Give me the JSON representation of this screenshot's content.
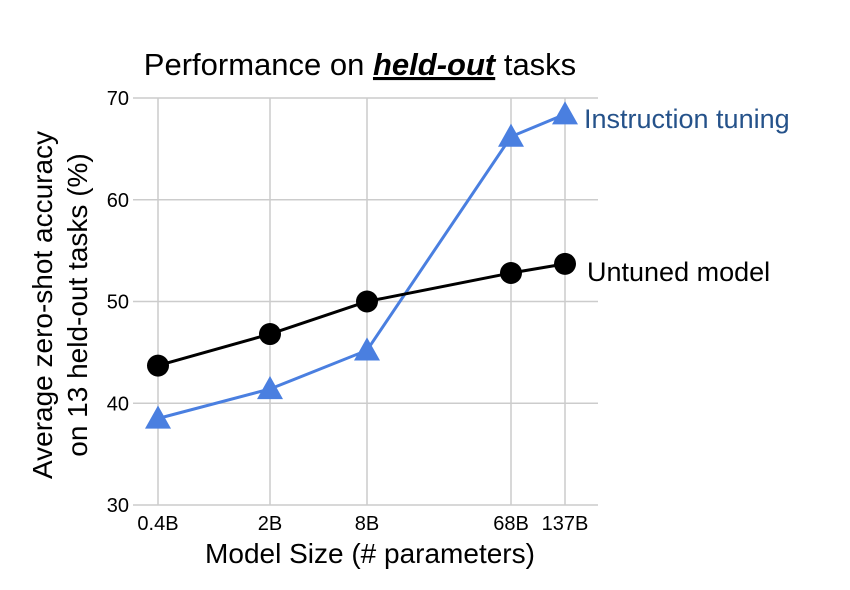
{
  "chart_data": {
    "type": "line",
    "title": {
      "prefix": "Performance on ",
      "emphasis": "held-out",
      "suffix": " tasks"
    },
    "xlabel": "Model Size (# parameters)",
    "ylabel": {
      "line1": "Average zero-shot accuracy",
      "line2": "on 13 held-out tasks (%)"
    },
    "categories": [
      "0.4B",
      "2B",
      "8B",
      "68B",
      "137B"
    ],
    "x_log_params_billion": [
      0.4,
      2,
      8,
      68,
      137
    ],
    "ylim": [
      30,
      70
    ],
    "yticks": [
      30,
      40,
      50,
      60,
      70
    ],
    "grid": true,
    "series": [
      {
        "name": "Instruction tuning",
        "marker": "triangle",
        "color": "#4a7fe0",
        "label_color": "#25528a",
        "values": [
          38.5,
          41.4,
          45.2,
          66.2,
          68.4
        ]
      },
      {
        "name": "Untuned model",
        "marker": "circle",
        "color": "#000000",
        "label_color": "#000000",
        "values": [
          43.7,
          46.8,
          50.0,
          52.8,
          53.7
        ]
      }
    ]
  }
}
